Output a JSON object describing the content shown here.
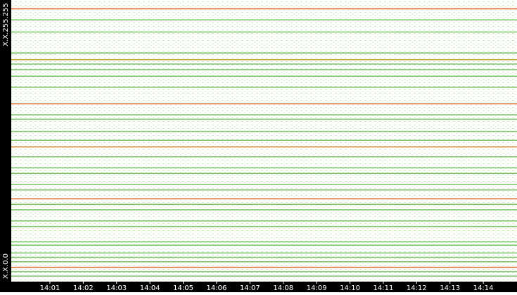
{
  "chart_data": {
    "type": "strip",
    "y_top_label": "X.X.255.255",
    "y_bottom_label": "X.X.0.0",
    "ylim": [
      0,
      255
    ],
    "xlim": [
      -0.16,
      15.01
    ],
    "xticks": [
      {
        "value": 1,
        "label": "14:01"
      },
      {
        "value": 2,
        "label": "14:02"
      },
      {
        "value": 3,
        "label": "14:03"
      },
      {
        "value": 4,
        "label": "14:04"
      },
      {
        "value": 5,
        "label": "14:05"
      },
      {
        "value": 6,
        "label": "14:06"
      },
      {
        "value": 7,
        "label": "14:07"
      },
      {
        "value": 8,
        "label": "14:08"
      },
      {
        "value": 9,
        "label": "14:09"
      },
      {
        "value": 10,
        "label": "14:10"
      },
      {
        "value": 11,
        "label": "14:11"
      },
      {
        "value": 12,
        "label": "14:12"
      },
      {
        "value": 13,
        "label": "14:13"
      },
      {
        "value": 14,
        "label": "14:14"
      }
    ],
    "rows": [
      {
        "y": 247,
        "color": "#d9682f"
      },
      {
        "y": 237,
        "color": "#7cc46a"
      },
      {
        "y": 226,
        "color": "#7cc46a"
      },
      {
        "y": 207,
        "color": "#6bb85a"
      },
      {
        "y": 201,
        "color": "#c9a040"
      },
      {
        "y": 197,
        "color": "#7cc46a"
      },
      {
        "y": 192,
        "color": "#7cc46a"
      },
      {
        "y": 186,
        "color": "#7cc46a"
      },
      {
        "y": 176,
        "color": "#7cc46a"
      },
      {
        "y": 161,
        "color": "#d9682f"
      },
      {
        "y": 151,
        "color": "#7cc46a"
      },
      {
        "y": 147,
        "color": "#7cc46a"
      },
      {
        "y": 136,
        "color": "#7cc46a"
      },
      {
        "y": 128,
        "color": "#7cc46a"
      },
      {
        "y": 122,
        "color": "#d98a3a"
      },
      {
        "y": 113,
        "color": "#7cc46a"
      },
      {
        "y": 103,
        "color": "#7cc46a"
      },
      {
        "y": 98,
        "color": "#7cc46a"
      },
      {
        "y": 88,
        "color": "#7cc46a"
      },
      {
        "y": 83,
        "color": "#7cc46a"
      },
      {
        "y": 75,
        "color": "#d9682f"
      },
      {
        "y": 70,
        "color": "#7cc46a"
      },
      {
        "y": 65,
        "color": "#7cc46a"
      },
      {
        "y": 55,
        "color": "#7cc46a"
      },
      {
        "y": 50,
        "color": "#7cc46a"
      },
      {
        "y": 36,
        "color": "#7cc46a"
      },
      {
        "y": 33,
        "color": "#7cc46a"
      },
      {
        "y": 26,
        "color": "#7cc46a"
      },
      {
        "y": 22,
        "color": "#7cc46a"
      },
      {
        "y": 18,
        "color": "#7cc46a"
      },
      {
        "y": 13,
        "color": "#d9682f"
      },
      {
        "y": 9,
        "color": "#7cc46a"
      },
      {
        "y": 5,
        "color": "#7cc46a"
      }
    ]
  }
}
